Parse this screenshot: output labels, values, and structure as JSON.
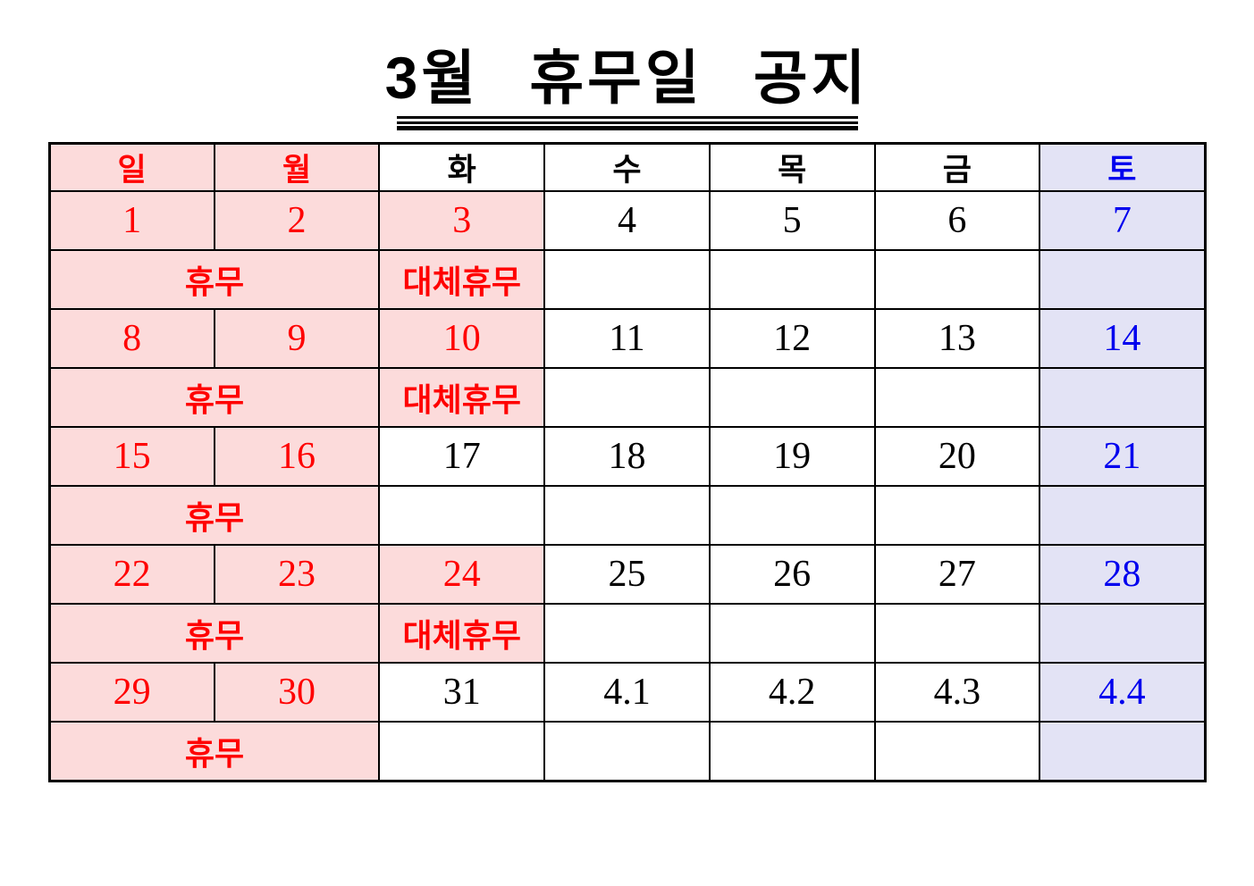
{
  "title": "3월 휴무일 공지",
  "colors": {
    "holiday_bg": "#FCDBDB",
    "holiday_text": "#FF0000",
    "saturday_bg": "#E3E3F5",
    "saturday_text": "#0000EE",
    "weekday_text": "#000000",
    "border": "#000000",
    "page_bg": "#FFFFFF"
  },
  "calendar": {
    "day_headers": [
      {
        "label": "일",
        "type": "holiday"
      },
      {
        "label": "월",
        "type": "holiday"
      },
      {
        "label": "화",
        "type": "weekday"
      },
      {
        "label": "수",
        "type": "weekday"
      },
      {
        "label": "목",
        "type": "weekday"
      },
      {
        "label": "금",
        "type": "weekday"
      },
      {
        "label": "토",
        "type": "saturday"
      }
    ],
    "weeks": [
      {
        "dates": [
          {
            "value": "1",
            "type": "holiday"
          },
          {
            "value": "2",
            "type": "holiday"
          },
          {
            "value": "3",
            "type": "holiday"
          },
          {
            "value": "4",
            "type": "normal"
          },
          {
            "value": "5",
            "type": "normal"
          },
          {
            "value": "6",
            "type": "normal"
          },
          {
            "value": "7",
            "type": "saturday"
          }
        ],
        "status": {
          "sun_mon": "휴무",
          "tue": "대체휴무",
          "wed": "",
          "thu": "",
          "fri": "",
          "sat": ""
        }
      },
      {
        "dates": [
          {
            "value": "8",
            "type": "holiday"
          },
          {
            "value": "9",
            "type": "holiday"
          },
          {
            "value": "10",
            "type": "holiday"
          },
          {
            "value": "11",
            "type": "normal"
          },
          {
            "value": "12",
            "type": "normal"
          },
          {
            "value": "13",
            "type": "normal"
          },
          {
            "value": "14",
            "type": "saturday"
          }
        ],
        "status": {
          "sun_mon": "휴무",
          "tue": "대체휴무",
          "wed": "",
          "thu": "",
          "fri": "",
          "sat": ""
        }
      },
      {
        "dates": [
          {
            "value": "15",
            "type": "holiday"
          },
          {
            "value": "16",
            "type": "holiday"
          },
          {
            "value": "17",
            "type": "normal"
          },
          {
            "value": "18",
            "type": "normal"
          },
          {
            "value": "19",
            "type": "normal"
          },
          {
            "value": "20",
            "type": "normal"
          },
          {
            "value": "21",
            "type": "saturday"
          }
        ],
        "status": {
          "sun_mon": "휴무",
          "tue": "",
          "wed": "",
          "thu": "",
          "fri": "",
          "sat": ""
        }
      },
      {
        "dates": [
          {
            "value": "22",
            "type": "holiday"
          },
          {
            "value": "23",
            "type": "holiday"
          },
          {
            "value": "24",
            "type": "holiday"
          },
          {
            "value": "25",
            "type": "normal"
          },
          {
            "value": "26",
            "type": "normal"
          },
          {
            "value": "27",
            "type": "normal"
          },
          {
            "value": "28",
            "type": "saturday"
          }
        ],
        "status": {
          "sun_mon": "휴무",
          "tue": "대체휴무",
          "wed": "",
          "thu": "",
          "fri": "",
          "sat": ""
        }
      },
      {
        "dates": [
          {
            "value": "29",
            "type": "holiday"
          },
          {
            "value": "30",
            "type": "holiday"
          },
          {
            "value": "31",
            "type": "normal"
          },
          {
            "value": "4.1",
            "type": "normal"
          },
          {
            "value": "4.2",
            "type": "normal"
          },
          {
            "value": "4.3",
            "type": "normal"
          },
          {
            "value": "4.4",
            "type": "saturday"
          }
        ],
        "status": {
          "sun_mon": "휴무",
          "tue": "",
          "wed": "",
          "thu": "",
          "fri": "",
          "sat": ""
        }
      }
    ]
  }
}
